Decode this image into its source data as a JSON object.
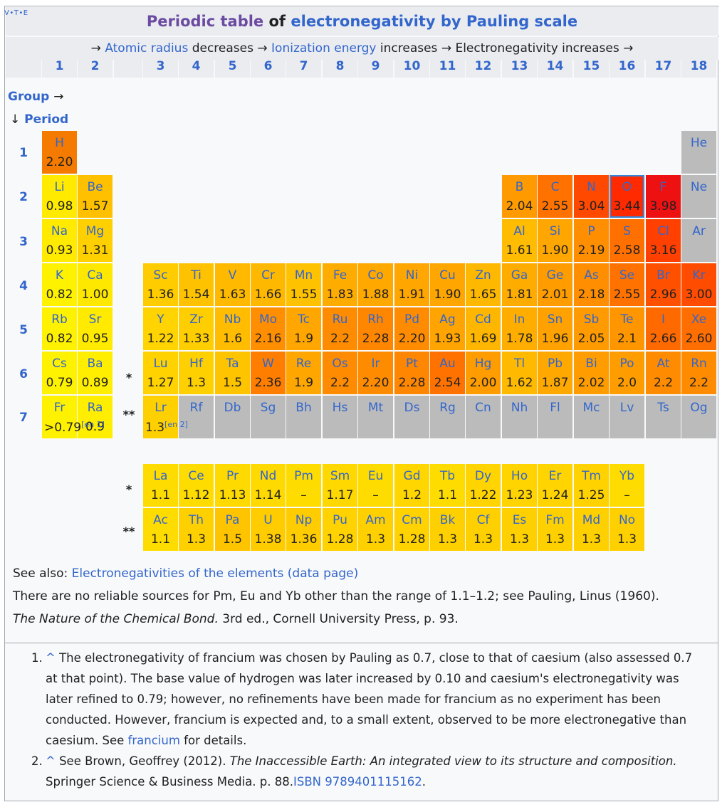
{
  "vte": {
    "v": "V",
    "t": "T",
    "e": "E"
  },
  "title": {
    "part1": "Periodic table",
    "part2": "of",
    "part3": "electronegativity by Pauling scale"
  },
  "subtitle": {
    "arrow1": "→",
    "link1": "Atomic radius",
    "text1": "decreases →",
    "link2": "Ionization energy",
    "text2": "increases → Electronegativity increases →"
  },
  "groups": [
    "1",
    "2",
    "3",
    "4",
    "5",
    "6",
    "7",
    "8",
    "9",
    "10",
    "11",
    "12",
    "13",
    "14",
    "15",
    "16",
    "17",
    "18"
  ],
  "group_label": "Group",
  "group_arrow": "→",
  "period_arrow": "↓",
  "period_label": "Period",
  "periods": [
    "1",
    "2",
    "3",
    "4",
    "5",
    "6",
    "7"
  ],
  "stars": {
    "lanthanide": "*",
    "actinide": "**"
  },
  "elements": [
    {
      "sym": "H",
      "val": "2.20",
      "col": 1,
      "row": 1,
      "color": "#f47a00"
    },
    {
      "sym": "He",
      "val": "",
      "col": 18,
      "row": 1,
      "color": "#bbbbbb"
    },
    {
      "sym": "Li",
      "val": "0.98",
      "col": 1,
      "row": 2,
      "color": "#ffea00"
    },
    {
      "sym": "Be",
      "val": "1.57",
      "col": 2,
      "row": 2,
      "color": "#ffc000"
    },
    {
      "sym": "B",
      "val": "2.04",
      "col": 13,
      "row": 2,
      "color": "#ff9a00"
    },
    {
      "sym": "C",
      "val": "2.55",
      "col": 14,
      "row": 2,
      "color": "#ff7200"
    },
    {
      "sym": "N",
      "val": "3.04",
      "col": 15,
      "row": 2,
      "color": "#ff4800"
    },
    {
      "sym": "O",
      "val": "3.44",
      "col": 16,
      "row": 2,
      "color": "#ff2a00",
      "sel": true
    },
    {
      "sym": "F",
      "val": "3.98",
      "col": 17,
      "row": 2,
      "color": "#ee1111"
    },
    {
      "sym": "Ne",
      "val": "",
      "col": 18,
      "row": 2,
      "color": "#bbbbbb"
    },
    {
      "sym": "Na",
      "val": "0.93",
      "col": 1,
      "row": 3,
      "color": "#ffea00"
    },
    {
      "sym": "Mg",
      "val": "1.31",
      "col": 2,
      "row": 3,
      "color": "#ffd000"
    },
    {
      "sym": "Al",
      "val": "1.61",
      "col": 13,
      "row": 3,
      "color": "#ffbc00"
    },
    {
      "sym": "Si",
      "val": "1.90",
      "col": 14,
      "row": 3,
      "color": "#ffa600"
    },
    {
      "sym": "P",
      "val": "2.19",
      "col": 15,
      "row": 3,
      "color": "#ff8e00"
    },
    {
      "sym": "S",
      "val": "2.58",
      "col": 16,
      "row": 3,
      "color": "#ff7000"
    },
    {
      "sym": "Cl",
      "val": "3.16",
      "col": 17,
      "row": 3,
      "color": "#ff4000"
    },
    {
      "sym": "Ar",
      "val": "",
      "col": 18,
      "row": 3,
      "color": "#bbbbbb"
    },
    {
      "sym": "K",
      "val": "0.82",
      "col": 1,
      "row": 4,
      "color": "#fff200"
    },
    {
      "sym": "Ca",
      "val": "1.00",
      "col": 2,
      "row": 4,
      "color": "#ffe800"
    },
    {
      "sym": "Sc",
      "val": "1.36",
      "col": 3,
      "row": 4,
      "color": "#ffcc00"
    },
    {
      "sym": "Ti",
      "val": "1.54",
      "col": 4,
      "row": 4,
      "color": "#ffc200"
    },
    {
      "sym": "V",
      "val": "1.63",
      "col": 5,
      "row": 4,
      "color": "#ffba00"
    },
    {
      "sym": "Cr",
      "val": "1.66",
      "col": 6,
      "row": 4,
      "color": "#ffb800"
    },
    {
      "sym": "Mn",
      "val": "1.55",
      "col": 7,
      "row": 4,
      "color": "#ffc200"
    },
    {
      "sym": "Fe",
      "val": "1.83",
      "col": 8,
      "row": 4,
      "color": "#ffac00"
    },
    {
      "sym": "Co",
      "val": "1.88",
      "col": 9,
      "row": 4,
      "color": "#ffa800"
    },
    {
      "sym": "Ni",
      "val": "1.91",
      "col": 10,
      "row": 4,
      "color": "#ffa600"
    },
    {
      "sym": "Cu",
      "val": "1.90",
      "col": 11,
      "row": 4,
      "color": "#ffa600"
    },
    {
      "sym": "Zn",
      "val": "1.65",
      "col": 12,
      "row": 4,
      "color": "#ffb800"
    },
    {
      "sym": "Ga",
      "val": "1.81",
      "col": 13,
      "row": 4,
      "color": "#ffac00"
    },
    {
      "sym": "Ge",
      "val": "2.01",
      "col": 14,
      "row": 4,
      "color": "#ff9c00"
    },
    {
      "sym": "As",
      "val": "2.18",
      "col": 15,
      "row": 4,
      "color": "#ff8e00"
    },
    {
      "sym": "Se",
      "val": "2.55",
      "col": 16,
      "row": 4,
      "color": "#ff7200"
    },
    {
      "sym": "Br",
      "val": "2.96",
      "col": 17,
      "row": 4,
      "color": "#ff5000"
    },
    {
      "sym": "Kr",
      "val": "3.00",
      "col": 18,
      "row": 4,
      "color": "#ff4c00"
    },
    {
      "sym": "Rb",
      "val": "0.82",
      "col": 1,
      "row": 5,
      "color": "#fff200"
    },
    {
      "sym": "Sr",
      "val": "0.95",
      "col": 2,
      "row": 5,
      "color": "#ffea00"
    },
    {
      "sym": "Y",
      "val": "1.22",
      "col": 3,
      "row": 5,
      "color": "#ffd400"
    },
    {
      "sym": "Zr",
      "val": "1.33",
      "col": 4,
      "row": 5,
      "color": "#ffce00"
    },
    {
      "sym": "Nb",
      "val": "1.6",
      "col": 5,
      "row": 5,
      "color": "#ffbc00"
    },
    {
      "sym": "Mo",
      "val": "2.16",
      "col": 6,
      "row": 5,
      "color": "#ff8e00"
    },
    {
      "sym": "Tc",
      "val": "1.9",
      "col": 7,
      "row": 5,
      "color": "#ffa600"
    },
    {
      "sym": "Ru",
      "val": "2.2",
      "col": 8,
      "row": 5,
      "color": "#ff8c00"
    },
    {
      "sym": "Rh",
      "val": "2.28",
      "col": 9,
      "row": 5,
      "color": "#ff8600"
    },
    {
      "sym": "Pd",
      "val": "2.20",
      "col": 10,
      "row": 5,
      "color": "#ff8c00"
    },
    {
      "sym": "Ag",
      "val": "1.93",
      "col": 11,
      "row": 5,
      "color": "#ffa400"
    },
    {
      "sym": "Cd",
      "val": "1.69",
      "col": 12,
      "row": 5,
      "color": "#ffb600"
    },
    {
      "sym": "In",
      "val": "1.78",
      "col": 13,
      "row": 5,
      "color": "#ffae00"
    },
    {
      "sym": "Sn",
      "val": "1.96",
      "col": 14,
      "row": 5,
      "color": "#ffa200"
    },
    {
      "sym": "Sb",
      "val": "2.05",
      "col": 15,
      "row": 5,
      "color": "#ff9a00"
    },
    {
      "sym": "Te",
      "val": "2.1",
      "col": 16,
      "row": 5,
      "color": "#ff9600"
    },
    {
      "sym": "I",
      "val": "2.66",
      "col": 17,
      "row": 5,
      "color": "#ff6a00"
    },
    {
      "sym": "Xe",
      "val": "2.60",
      "col": 18,
      "row": 5,
      "color": "#ff6e00"
    },
    {
      "sym": "Cs",
      "val": "0.79",
      "col": 1,
      "row": 6,
      "color": "#fff200"
    },
    {
      "sym": "Ba",
      "val": "0.89",
      "col": 2,
      "row": 6,
      "color": "#ffee00"
    },
    {
      "sym": "Lu",
      "val": "1.27",
      "col": 3,
      "row": 6,
      "color": "#ffd200"
    },
    {
      "sym": "Hf",
      "val": "1.3",
      "col": 4,
      "row": 6,
      "color": "#ffd000"
    },
    {
      "sym": "Ta",
      "val": "1.5",
      "col": 5,
      "row": 6,
      "color": "#ffc400"
    },
    {
      "sym": "W",
      "val": "2.36",
      "col": 6,
      "row": 6,
      "color": "#ff7e00"
    },
    {
      "sym": "Re",
      "val": "1.9",
      "col": 7,
      "row": 6,
      "color": "#ffa600"
    },
    {
      "sym": "Os",
      "val": "2.2",
      "col": 8,
      "row": 6,
      "color": "#ff8c00"
    },
    {
      "sym": "Ir",
      "val": "2.20",
      "col": 9,
      "row": 6,
      "color": "#ff8c00"
    },
    {
      "sym": "Pt",
      "val": "2.28",
      "col": 10,
      "row": 6,
      "color": "#ff8600"
    },
    {
      "sym": "Au",
      "val": "2.54",
      "col": 11,
      "row": 6,
      "color": "#ff7200"
    },
    {
      "sym": "Hg",
      "val": "2.00",
      "col": 12,
      "row": 6,
      "color": "#ff9c00"
    },
    {
      "sym": "Tl",
      "val": "1.62",
      "col": 13,
      "row": 6,
      "color": "#ffba00"
    },
    {
      "sym": "Pb",
      "val": "1.87",
      "col": 14,
      "row": 6,
      "color": "#ffa800"
    },
    {
      "sym": "Bi",
      "val": "2.02",
      "col": 15,
      "row": 6,
      "color": "#ff9c00"
    },
    {
      "sym": "Po",
      "val": "2.0",
      "col": 16,
      "row": 6,
      "color": "#ff9c00"
    },
    {
      "sym": "At",
      "val": "2.2",
      "col": 17,
      "row": 6,
      "color": "#ff8c00"
    },
    {
      "sym": "Rn",
      "val": "2.2",
      "col": 18,
      "row": 6,
      "color": "#ff8c00"
    },
    {
      "sym": "Fr",
      "val": ">0.79",
      "sup": "[en 1]",
      "col": 1,
      "row": 7,
      "color": "#fff200"
    },
    {
      "sym": "Ra",
      "val": "0.9",
      "col": 2,
      "row": 7,
      "color": "#ffee00"
    },
    {
      "sym": "Lr",
      "val": "1.3",
      "sup": "[en 2]",
      "col": 3,
      "row": 7,
      "color": "#ffd000"
    },
    {
      "sym": "Rf",
      "val": "",
      "col": 4,
      "row": 7,
      "color": "#bbbbbb"
    },
    {
      "sym": "Db",
      "val": "",
      "col": 5,
      "row": 7,
      "color": "#bbbbbb"
    },
    {
      "sym": "Sg",
      "val": "",
      "col": 6,
      "row": 7,
      "color": "#bbbbbb"
    },
    {
      "sym": "Bh",
      "val": "",
      "col": 7,
      "row": 7,
      "color": "#bbbbbb"
    },
    {
      "sym": "Hs",
      "val": "",
      "col": 8,
      "row": 7,
      "color": "#bbbbbb"
    },
    {
      "sym": "Mt",
      "val": "",
      "col": 9,
      "row": 7,
      "color": "#bbbbbb"
    },
    {
      "sym": "Ds",
      "val": "",
      "col": 10,
      "row": 7,
      "color": "#bbbbbb"
    },
    {
      "sym": "Rg",
      "val": "",
      "col": 11,
      "row": 7,
      "color": "#bbbbbb"
    },
    {
      "sym": "Cn",
      "val": "",
      "col": 12,
      "row": 7,
      "color": "#bbbbbb"
    },
    {
      "sym": "Nh",
      "val": "",
      "col": 13,
      "row": 7,
      "color": "#bbbbbb"
    },
    {
      "sym": "Fl",
      "val": "",
      "col": 14,
      "row": 7,
      "color": "#bbbbbb"
    },
    {
      "sym": "Mc",
      "val": "",
      "col": 15,
      "row": 7,
      "color": "#bbbbbb"
    },
    {
      "sym": "Lv",
      "val": "",
      "col": 16,
      "row": 7,
      "color": "#bbbbbb"
    },
    {
      "sym": "Ts",
      "val": "",
      "col": 17,
      "row": 7,
      "color": "#bbbbbb"
    },
    {
      "sym": "Og",
      "val": "",
      "col": 18,
      "row": 7,
      "color": "#bbbbbb"
    },
    {
      "sym": "La",
      "val": "1.1",
      "col": 3,
      "row": 8,
      "color": "#ffdc00"
    },
    {
      "sym": "Ce",
      "val": "1.12",
      "col": 4,
      "row": 8,
      "color": "#ffdc00"
    },
    {
      "sym": "Pr",
      "val": "1.13",
      "col": 5,
      "row": 8,
      "color": "#ffda00"
    },
    {
      "sym": "Nd",
      "val": "1.14",
      "col": 6,
      "row": 8,
      "color": "#ffda00"
    },
    {
      "sym": "Pm",
      "val": "–",
      "col": 7,
      "row": 8,
      "color": "#ffdc00"
    },
    {
      "sym": "Sm",
      "val": "1.17",
      "col": 8,
      "row": 8,
      "color": "#ffd800"
    },
    {
      "sym": "Eu",
      "val": "–",
      "col": 9,
      "row": 8,
      "color": "#ffdc00"
    },
    {
      "sym": "Gd",
      "val": "1.2",
      "col": 10,
      "row": 8,
      "color": "#ffd600"
    },
    {
      "sym": "Tb",
      "val": "1.1",
      "col": 11,
      "row": 8,
      "color": "#ffdc00"
    },
    {
      "sym": "Dy",
      "val": "1.22",
      "col": 12,
      "row": 8,
      "color": "#ffd400"
    },
    {
      "sym": "Ho",
      "val": "1.23",
      "col": 13,
      "row": 8,
      "color": "#ffd400"
    },
    {
      "sym": "Er",
      "val": "1.24",
      "col": 14,
      "row": 8,
      "color": "#ffd400"
    },
    {
      "sym": "Tm",
      "val": "1.25",
      "col": 15,
      "row": 8,
      "color": "#ffd200"
    },
    {
      "sym": "Yb",
      "val": "–",
      "col": 16,
      "row": 8,
      "color": "#ffdc00"
    },
    {
      "sym": "Ac",
      "val": "1.1",
      "col": 3,
      "row": 9,
      "color": "#ffdc00"
    },
    {
      "sym": "Th",
      "val": "1.3",
      "col": 4,
      "row": 9,
      "color": "#ffd000"
    },
    {
      "sym": "Pa",
      "val": "1.5",
      "col": 5,
      "row": 9,
      "color": "#ffc400"
    },
    {
      "sym": "U",
      "val": "1.38",
      "col": 6,
      "row": 9,
      "color": "#ffcc00"
    },
    {
      "sym": "Np",
      "val": "1.36",
      "col": 7,
      "row": 9,
      "color": "#ffcc00"
    },
    {
      "sym": "Pu",
      "val": "1.28",
      "col": 8,
      "row": 9,
      "color": "#ffd200"
    },
    {
      "sym": "Am",
      "val": "1.3",
      "col": 9,
      "row": 9,
      "color": "#ffd000"
    },
    {
      "sym": "Cm",
      "val": "1.28",
      "col": 10,
      "row": 9,
      "color": "#ffd200"
    },
    {
      "sym": "Bk",
      "val": "1.3",
      "col": 11,
      "row": 9,
      "color": "#ffd000"
    },
    {
      "sym": "Cf",
      "val": "1.3",
      "col": 12,
      "row": 9,
      "color": "#ffd000"
    },
    {
      "sym": "Es",
      "val": "1.3",
      "col": 13,
      "row": 9,
      "color": "#ffd000"
    },
    {
      "sym": "Fm",
      "val": "1.3",
      "col": 14,
      "row": 9,
      "color": "#ffd000"
    },
    {
      "sym": "Md",
      "val": "1.3",
      "col": 15,
      "row": 9,
      "color": "#ffd000"
    },
    {
      "sym": "No",
      "val": "1.3",
      "col": 16,
      "row": 9,
      "color": "#ffd000"
    }
  ],
  "notes": {
    "see_also_label": "See also:",
    "see_also_link": "Electronegativities of the elements (data page)",
    "line2": "There are no reliable sources for Pm, Eu and Yb other than the range of 1.1–1.2; see Pauling, Linus (1960).",
    "book": "The Nature of the Chemical Bond.",
    "line3_rest": "3rd ed., Cornell University Press, p. 93."
  },
  "references": [
    {
      "num": "1.",
      "caret": "^",
      "text": "The electronegativity of francium was chosen by Pauling as 0.7, close to that of caesium (also assessed 0.7 at that point). The base value of hydrogen was later increased by 0.10 and caesium's electronegativity was later refined to 0.79; however, no refinements have been made for francium as no experiment has been conducted. However, francium is expected and, to a small extent, observed to be more electronegative than caesium. See",
      "link": "francium",
      "tail": "for details."
    },
    {
      "num": "2.",
      "caret": "^",
      "text": "See Brown, Geoffrey (2012).",
      "italic": "The Inaccessible Earth: An integrated view to its structure and composition.",
      "text2": "Springer Science & Business Media. p. 88.",
      "link": "ISBN 9789401115162",
      "tail": "."
    }
  ]
}
